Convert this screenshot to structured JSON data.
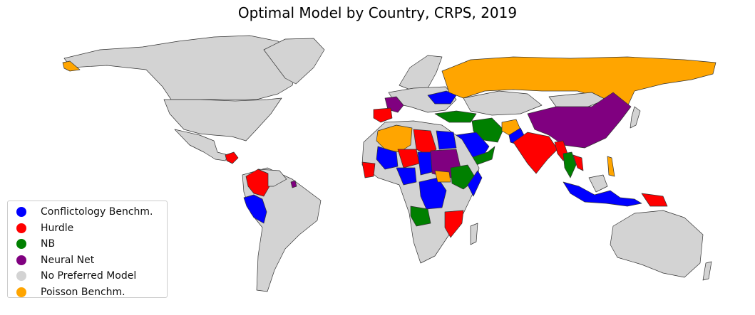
{
  "title": "Optimal Model by Country, CRPS, 2019",
  "colors": {
    "conflictology": "#0000ff",
    "hurdle": "#ff0000",
    "nb": "#008000",
    "neural": "#800080",
    "none": "#d3d3d3",
    "poisson": "#ffa500"
  },
  "legend": [
    {
      "label": "Conflictology Benchm.",
      "color": "#0000ff"
    },
    {
      "label": "Hurdle",
      "color": "#ff0000"
    },
    {
      "label": "NB",
      "color": "#008000"
    },
    {
      "label": "Neural Net",
      "color": "#800080"
    },
    {
      "label": "No Preferred Model",
      "color": "#d3d3d3"
    },
    {
      "label": "Poisson Benchm.",
      "color": "#ffa500"
    }
  ],
  "regions": [
    {
      "name": "russia",
      "model": "poisson"
    },
    {
      "name": "china",
      "model": "neural"
    },
    {
      "name": "india",
      "model": "hurdle"
    },
    {
      "name": "spain",
      "model": "hurdle"
    },
    {
      "name": "france",
      "model": "neural"
    },
    {
      "name": "algeria",
      "model": "poisson"
    },
    {
      "name": "libya",
      "model": "hurdle"
    },
    {
      "name": "egypt",
      "model": "conflictology"
    },
    {
      "name": "sudan",
      "model": "neural"
    },
    {
      "name": "ethiopia",
      "model": "nb"
    },
    {
      "name": "drc",
      "model": "conflictology"
    },
    {
      "name": "angola",
      "model": "nb"
    },
    {
      "name": "mozambique",
      "model": "hurdle"
    },
    {
      "name": "saudi-arabia",
      "model": "conflictology"
    },
    {
      "name": "iran",
      "model": "nb"
    },
    {
      "name": "turkey",
      "model": "nb"
    },
    {
      "name": "afghanistan",
      "model": "poisson"
    },
    {
      "name": "colombia",
      "model": "hurdle"
    },
    {
      "name": "peru",
      "model": "conflictology"
    },
    {
      "name": "indonesia",
      "model": "conflictology"
    },
    {
      "name": "papua",
      "model": "hurdle"
    },
    {
      "name": "myanmar",
      "model": "hurdle"
    },
    {
      "name": "thailand",
      "model": "nb"
    },
    {
      "name": "niger",
      "model": "hurdle"
    },
    {
      "name": "mali",
      "model": "conflictology"
    },
    {
      "name": "chad",
      "model": "conflictology"
    },
    {
      "name": "nigeria",
      "model": "conflictology"
    },
    {
      "name": "ukraine",
      "model": "conflictology"
    }
  ]
}
